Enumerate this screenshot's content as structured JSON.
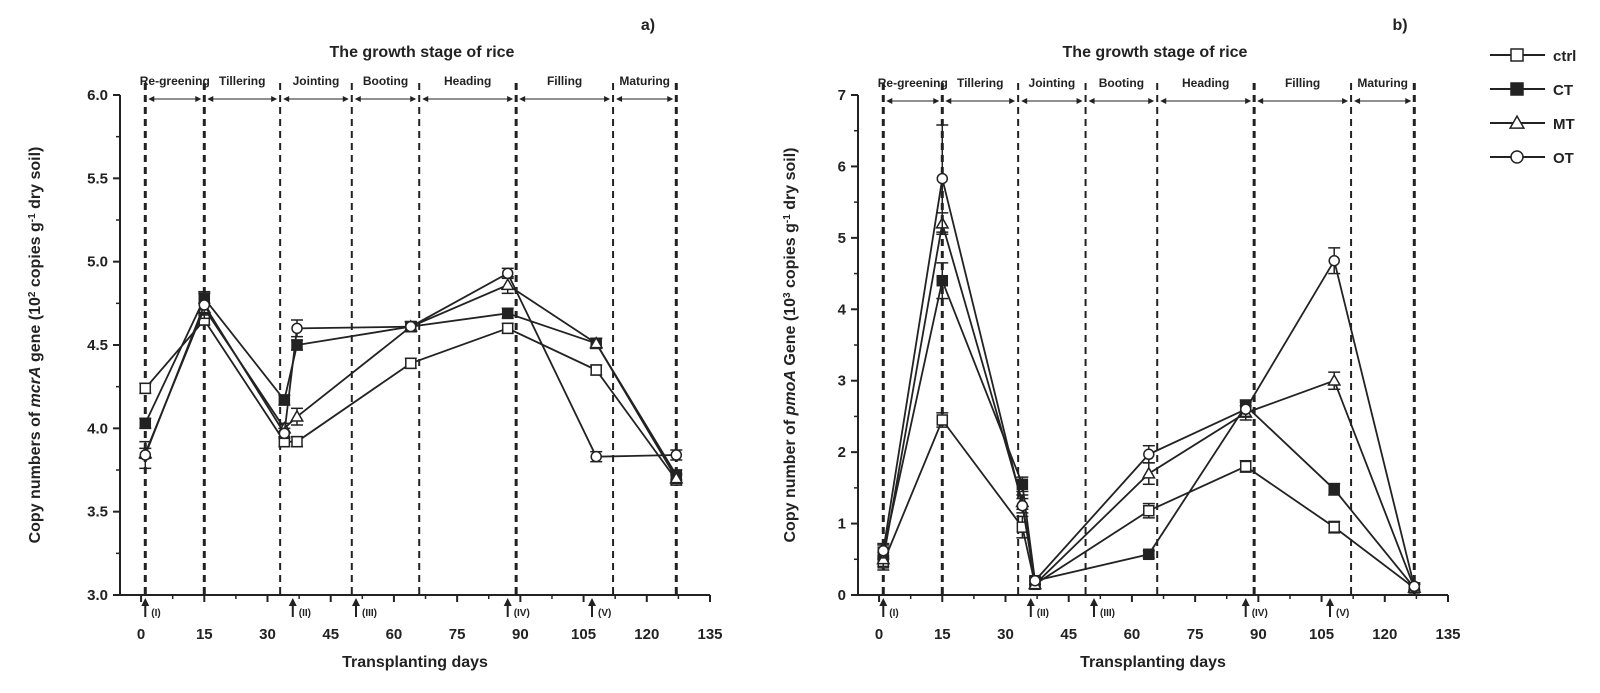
{
  "chart_data": [
    {
      "panel_label": "a)",
      "type": "line",
      "title": "The growth stage of rice",
      "xlabel": "Transplanting days",
      "ylabel_pre": "Copy numbers of ",
      "ylabel_gene": "mcrA",
      "ylabel_mid": " gene  (10",
      "ylabel_exp": "2",
      "ylabel_unit": " copies g",
      "ylabel_unit_exp": "-1",
      "ylabel_post": " dry soil)",
      "xlim": [
        -5,
        135
      ],
      "ylim": [
        3.0,
        6.0
      ],
      "xticks": [
        "0",
        "15",
        "30",
        "45",
        "60",
        "75",
        "90",
        "105",
        "120",
        "135"
      ],
      "yticks": [
        "3.0",
        "3.5",
        "4.0",
        "4.5",
        "5.0",
        "5.5",
        "6.0"
      ],
      "x": [
        1,
        15,
        34,
        37,
        64,
        87,
        108,
        127
      ],
      "series": [
        {
          "name": "ctrl",
          "marker": "square-open",
          "values": [
            4.24,
            4.65,
            3.92,
            3.92,
            4.39,
            4.6,
            4.35,
            3.69
          ],
          "err": [
            0.03,
            0.03,
            0.03,
            0.03,
            0.03,
            0.03,
            0.03,
            0.03
          ]
        },
        {
          "name": "CT",
          "marker": "square-filled",
          "values": [
            4.03,
            4.78,
            4.17,
            4.5,
            4.61,
            4.69,
            4.51,
            3.72
          ],
          "err": [
            0.03,
            0.03,
            0.03,
            0.03,
            0.03,
            0.03,
            0.03,
            0.03
          ]
        },
        {
          "name": "MT",
          "marker": "triangle-open",
          "values": [
            3.85,
            4.72,
            4.0,
            4.07,
            4.61,
            4.86,
            4.51,
            3.7
          ],
          "err": [
            0.03,
            0.03,
            0.03,
            0.05,
            0.03,
            0.05,
            0.03,
            0.03
          ]
        },
        {
          "name": "OT",
          "marker": "circle-open",
          "values": [
            3.84,
            4.74,
            3.97,
            4.6,
            4.61,
            4.93,
            3.83,
            3.84
          ],
          "err": [
            0.08,
            0.08,
            0.03,
            0.05,
            0.03,
            0.03,
            0.03,
            0.03
          ]
        }
      ],
      "stage_boundaries": [
        1,
        15,
        33,
        50,
        66,
        89,
        112,
        127
      ],
      "stages": [
        "Re-greening",
        "Tillering",
        "Jointing",
        "Booting",
        "Heading",
        "Filling",
        "Maturing"
      ],
      "events": [
        {
          "label": "(I)",
          "x": 1
        },
        {
          "label": "(II)",
          "x": 36
        },
        {
          "label": "(III)",
          "x": 51
        },
        {
          "label": "(IV)",
          "x": 87
        },
        {
          "label": "(V)",
          "x": 107
        }
      ]
    },
    {
      "panel_label": "b)",
      "type": "line",
      "title": "The growth stage of rice",
      "xlabel": "Transplanting days",
      "ylabel_pre": "Copy number of ",
      "ylabel_gene": "pmoA",
      "ylabel_mid": " Gene (10",
      "ylabel_exp": "3",
      "ylabel_unit": " copies g",
      "ylabel_unit_exp": "-1",
      "ylabel_post": " dry soil)",
      "xlim": [
        -5,
        135
      ],
      "ylim": [
        0,
        7
      ],
      "xticks": [
        "0",
        "15",
        "30",
        "45",
        "60",
        "75",
        "90",
        "105",
        "120",
        "135"
      ],
      "yticks": [
        "0",
        "1",
        "2",
        "3",
        "4",
        "5",
        "6",
        "7"
      ],
      "x": [
        1,
        15,
        34,
        37,
        64,
        87,
        108,
        127
      ],
      "series": [
        {
          "name": "ctrl",
          "marker": "square-open",
          "values": [
            0.45,
            2.45,
            0.95,
            0.15,
            1.18,
            1.8,
            0.95,
            0.1
          ],
          "err": [
            0.1,
            0.1,
            0.15,
            0.05,
            0.1,
            0.08,
            0.08,
            0.05
          ]
        },
        {
          "name": "CT",
          "marker": "square-filled",
          "values": [
            0.6,
            4.4,
            1.55,
            0.2,
            0.57,
            2.65,
            1.48,
            0.1
          ],
          "err": [
            0.1,
            0.25,
            0.1,
            0.05,
            0.05,
            0.08,
            0.08,
            0.05
          ]
        },
        {
          "name": "MT",
          "marker": "triangle-open",
          "values": [
            0.5,
            5.2,
            1.3,
            0.15,
            1.7,
            2.55,
            3.0,
            0.1
          ],
          "err": [
            0.1,
            0.15,
            0.1,
            0.05,
            0.15,
            0.1,
            0.12,
            0.05
          ]
        },
        {
          "name": "OT",
          "marker": "circle-open",
          "values": [
            0.62,
            5.83,
            1.25,
            0.2,
            1.97,
            2.6,
            4.68,
            0.12
          ],
          "err": [
            0.1,
            0.75,
            0.1,
            0.05,
            0.12,
            0.1,
            0.18,
            0.05
          ]
        }
      ],
      "stage_boundaries": [
        1,
        15,
        33,
        49,
        66,
        89,
        112,
        127
      ],
      "stages": [
        "Re-greening",
        "Tillering",
        "Jointing",
        "Booting",
        "Heading",
        "Filling",
        "Maturing"
      ],
      "events": [
        {
          "label": "(I)",
          "x": 1
        },
        {
          "label": "(II)",
          "x": 36
        },
        {
          "label": "(III)",
          "x": 51
        },
        {
          "label": "(IV)",
          "x": 87
        },
        {
          "label": "(V)",
          "x": 107
        }
      ]
    }
  ],
  "legend": {
    "items": [
      {
        "label": "ctrl",
        "marker": "square-open"
      },
      {
        "label": "CT",
        "marker": "square-filled"
      },
      {
        "label": "MT",
        "marker": "triangle-open"
      },
      {
        "label": "OT",
        "marker": "circle-open"
      }
    ]
  }
}
